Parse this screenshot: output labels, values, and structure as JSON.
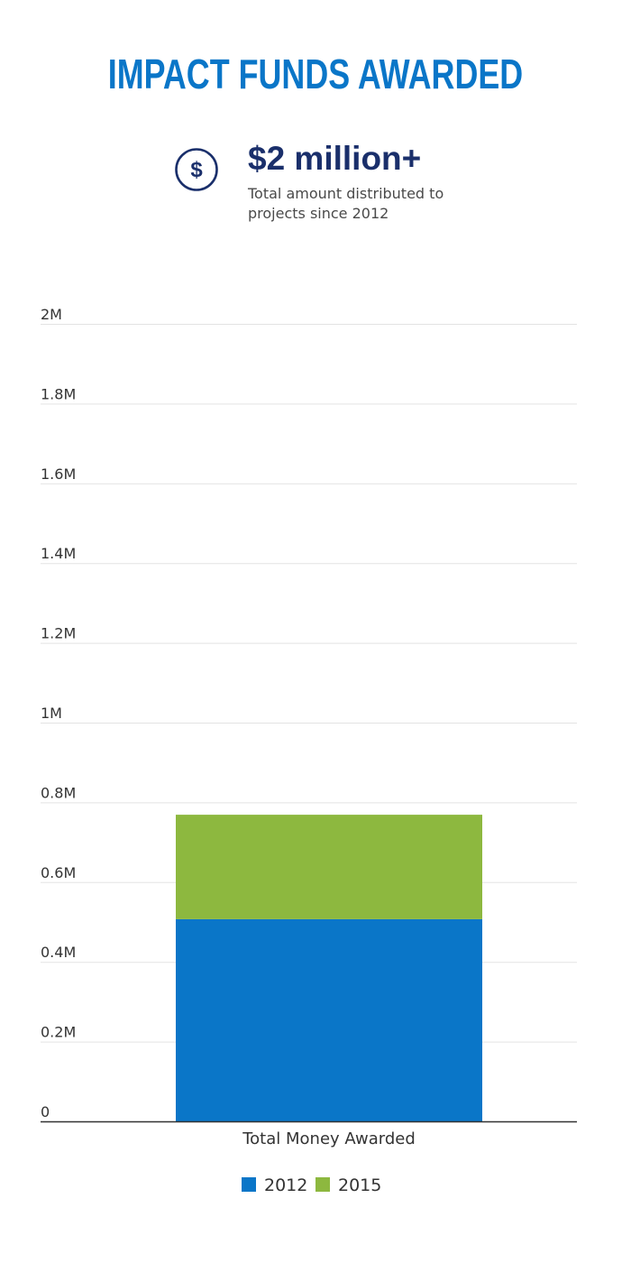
{
  "header": {
    "title": "IMPACT FUNDS AWARDED"
  },
  "stat": {
    "icon": "dollar-circle-icon",
    "value": "$2 million+",
    "description": "Total amount distributed to projects since 2012"
  },
  "colors": {
    "title": "#0a76c8",
    "stat_value": "#1a2f6b",
    "series_2012": "#0a76c8",
    "series_2015": "#8db83f",
    "gridline": "#e3e3e3",
    "axis": "#333333",
    "tick_text": "#333333"
  },
  "chart_data": {
    "type": "bar",
    "stacked": true,
    "categories": [
      "Total Money Awarded"
    ],
    "series": [
      {
        "name": "2012",
        "values": [
          507000
        ],
        "color": "#0a76c8"
      },
      {
        "name": "2015",
        "values": [
          262000
        ],
        "color": "#8db83f"
      }
    ],
    "ylim": [
      0,
      2000000
    ],
    "yticks": [
      {
        "value": 0,
        "label": "0"
      },
      {
        "value": 200000,
        "label": "0.2M"
      },
      {
        "value": 400000,
        "label": "0.4M"
      },
      {
        "value": 600000,
        "label": "0.6M"
      },
      {
        "value": 800000,
        "label": "0.8M"
      },
      {
        "value": 1000000,
        "label": "1M"
      },
      {
        "value": 1200000,
        "label": "1.2M"
      },
      {
        "value": 1400000,
        "label": "1.4M"
      },
      {
        "value": 1600000,
        "label": "1.6M"
      },
      {
        "value": 1800000,
        "label": "1.8M"
      },
      {
        "value": 2000000,
        "label": "2M"
      }
    ],
    "grid": true,
    "legend_position": "bottom-center"
  }
}
